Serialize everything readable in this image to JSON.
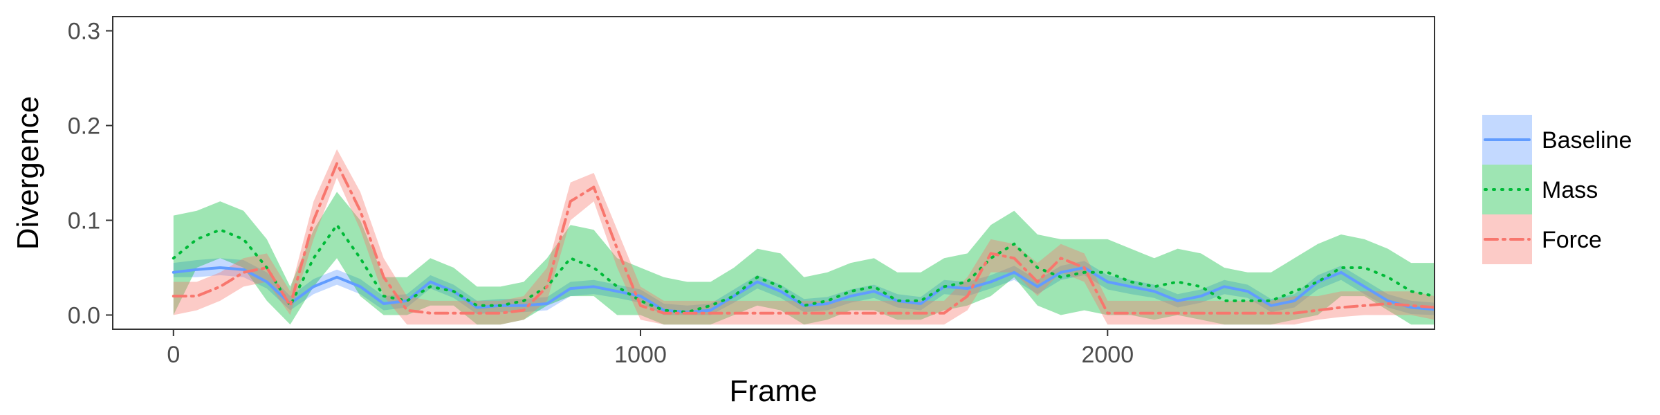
{
  "chart_data": {
    "type": "line",
    "title": "",
    "xlabel": "Frame",
    "ylabel": "Divergence",
    "xlim": [
      -130,
      2700
    ],
    "ylim": [
      -0.015,
      0.315
    ],
    "x_ticks": [
      0,
      1000,
      2000
    ],
    "x_tick_labels": [
      "0",
      "1000",
      "2000"
    ],
    "y_ticks": [
      0.0,
      0.1,
      0.2,
      0.3
    ],
    "y_tick_labels": [
      "0.0",
      "0.1",
      "0.2",
      "0.3"
    ],
    "grid": false,
    "legend_position": "right",
    "series": [
      {
        "name": "Baseline",
        "color": "#619CFF",
        "line_style": "solid",
        "ribbon": true,
        "points": [
          [
            0,
            0.045,
            0.04,
            0.055
          ],
          [
            50,
            0.048,
            0.04,
            0.058
          ],
          [
            100,
            0.05,
            0.042,
            0.06
          ],
          [
            150,
            0.048,
            0.04,
            0.058
          ],
          [
            200,
            0.035,
            0.028,
            0.045
          ],
          [
            250,
            0.012,
            0.005,
            0.02
          ],
          [
            300,
            0.03,
            0.022,
            0.038
          ],
          [
            350,
            0.04,
            0.032,
            0.048
          ],
          [
            400,
            0.03,
            0.022,
            0.038
          ],
          [
            450,
            0.012,
            0.005,
            0.02
          ],
          [
            500,
            0.015,
            0.008,
            0.022
          ],
          [
            550,
            0.035,
            0.028,
            0.042
          ],
          [
            600,
            0.025,
            0.018,
            0.032
          ],
          [
            650,
            0.008,
            0.001,
            0.015
          ],
          [
            700,
            0.01,
            0.003,
            0.017
          ],
          [
            750,
            0.01,
            0.003,
            0.017
          ],
          [
            800,
            0.012,
            0.005,
            0.019
          ],
          [
            850,
            0.028,
            0.02,
            0.035
          ],
          [
            900,
            0.03,
            0.022,
            0.037
          ],
          [
            950,
            0.025,
            0.018,
            0.032
          ],
          [
            1000,
            0.02,
            0.013,
            0.027
          ],
          [
            1050,
            0.005,
            0.0,
            0.012
          ],
          [
            1100,
            0.003,
            0.0,
            0.01
          ],
          [
            1150,
            0.005,
            0.0,
            0.012
          ],
          [
            1200,
            0.02,
            0.013,
            0.027
          ],
          [
            1250,
            0.035,
            0.028,
            0.042
          ],
          [
            1300,
            0.025,
            0.018,
            0.032
          ],
          [
            1350,
            0.01,
            0.003,
            0.017
          ],
          [
            1400,
            0.012,
            0.005,
            0.019
          ],
          [
            1450,
            0.02,
            0.013,
            0.027
          ],
          [
            1500,
            0.025,
            0.018,
            0.032
          ],
          [
            1550,
            0.015,
            0.008,
            0.022
          ],
          [
            1600,
            0.012,
            0.005,
            0.019
          ],
          [
            1650,
            0.03,
            0.022,
            0.037
          ],
          [
            1700,
            0.028,
            0.02,
            0.035
          ],
          [
            1750,
            0.035,
            0.028,
            0.042
          ],
          [
            1800,
            0.045,
            0.037,
            0.052
          ],
          [
            1850,
            0.03,
            0.022,
            0.037
          ],
          [
            1900,
            0.045,
            0.037,
            0.052
          ],
          [
            1950,
            0.05,
            0.042,
            0.057
          ],
          [
            2000,
            0.035,
            0.027,
            0.042
          ],
          [
            2050,
            0.03,
            0.022,
            0.037
          ],
          [
            2100,
            0.025,
            0.018,
            0.032
          ],
          [
            2150,
            0.015,
            0.008,
            0.022
          ],
          [
            2200,
            0.02,
            0.013,
            0.027
          ],
          [
            2250,
            0.03,
            0.022,
            0.037
          ],
          [
            2300,
            0.025,
            0.018,
            0.032
          ],
          [
            2350,
            0.01,
            0.003,
            0.017
          ],
          [
            2400,
            0.015,
            0.008,
            0.022
          ],
          [
            2450,
            0.035,
            0.027,
            0.042
          ],
          [
            2500,
            0.045,
            0.037,
            0.052
          ],
          [
            2550,
            0.03,
            0.022,
            0.037
          ],
          [
            2600,
            0.015,
            0.008,
            0.022
          ],
          [
            2650,
            0.008,
            0.001,
            0.015
          ],
          [
            2700,
            0.006,
            0.0,
            0.013
          ]
        ]
      },
      {
        "name": "Mass",
        "color": "#00BA38",
        "line_style": "dotted",
        "ribbon": true,
        "points": [
          [
            0,
            0.06,
            0.0,
            0.105
          ],
          [
            50,
            0.08,
            0.05,
            0.11
          ],
          [
            100,
            0.09,
            0.06,
            0.12
          ],
          [
            150,
            0.08,
            0.05,
            0.11
          ],
          [
            200,
            0.05,
            0.015,
            0.08
          ],
          [
            250,
            0.01,
            -0.01,
            0.03
          ],
          [
            300,
            0.06,
            0.03,
            0.09
          ],
          [
            350,
            0.095,
            0.06,
            0.13
          ],
          [
            400,
            0.06,
            0.02,
            0.1
          ],
          [
            450,
            0.02,
            0.0,
            0.04
          ],
          [
            500,
            0.015,
            0.0,
            0.04
          ],
          [
            550,
            0.03,
            0.01,
            0.06
          ],
          [
            600,
            0.025,
            0.01,
            0.05
          ],
          [
            650,
            0.01,
            -0.01,
            0.03
          ],
          [
            700,
            0.01,
            -0.01,
            0.03
          ],
          [
            750,
            0.015,
            -0.005,
            0.035
          ],
          [
            800,
            0.03,
            0.01,
            0.06
          ],
          [
            850,
            0.06,
            0.02,
            0.095
          ],
          [
            900,
            0.05,
            0.02,
            0.09
          ],
          [
            950,
            0.03,
            0.0,
            0.06
          ],
          [
            1000,
            0.015,
            0.0,
            0.05
          ],
          [
            1050,
            0.005,
            -0.01,
            0.04
          ],
          [
            1100,
            0.003,
            -0.01,
            0.035
          ],
          [
            1150,
            0.01,
            -0.01,
            0.035
          ],
          [
            1200,
            0.02,
            0.0,
            0.05
          ],
          [
            1250,
            0.04,
            0.01,
            0.07
          ],
          [
            1300,
            0.03,
            0.005,
            0.065
          ],
          [
            1350,
            0.01,
            -0.01,
            0.04
          ],
          [
            1400,
            0.015,
            -0.005,
            0.045
          ],
          [
            1450,
            0.025,
            0.005,
            0.055
          ],
          [
            1500,
            0.03,
            0.005,
            0.06
          ],
          [
            1550,
            0.015,
            -0.005,
            0.045
          ],
          [
            1600,
            0.015,
            -0.005,
            0.045
          ],
          [
            1650,
            0.03,
            0.005,
            0.06
          ],
          [
            1700,
            0.035,
            0.01,
            0.065
          ],
          [
            1750,
            0.06,
            0.02,
            0.095
          ],
          [
            1800,
            0.075,
            0.04,
            0.11
          ],
          [
            1850,
            0.05,
            0.01,
            0.085
          ],
          [
            1900,
            0.04,
            0.0,
            0.08
          ],
          [
            1950,
            0.045,
            0.005,
            0.08
          ],
          [
            2000,
            0.045,
            0.0,
            0.08
          ],
          [
            2050,
            0.035,
            0.0,
            0.07
          ],
          [
            2100,
            0.03,
            -0.005,
            0.06
          ],
          [
            2150,
            0.035,
            0.0,
            0.07
          ],
          [
            2200,
            0.03,
            -0.005,
            0.065
          ],
          [
            2250,
            0.015,
            -0.01,
            0.05
          ],
          [
            2300,
            0.015,
            -0.01,
            0.045
          ],
          [
            2350,
            0.015,
            -0.01,
            0.045
          ],
          [
            2400,
            0.025,
            -0.005,
            0.06
          ],
          [
            2450,
            0.035,
            0.0,
            0.075
          ],
          [
            2500,
            0.05,
            0.02,
            0.085
          ],
          [
            2550,
            0.05,
            0.02,
            0.08
          ],
          [
            2600,
            0.04,
            0.005,
            0.07
          ],
          [
            2650,
            0.025,
            -0.01,
            0.055
          ],
          [
            2700,
            0.02,
            -0.01,
            0.055
          ]
        ]
      },
      {
        "name": "Force",
        "color": "#F8766D",
        "line_style": "dashdot",
        "ribbon": true,
        "points": [
          [
            0,
            0.02,
            0.0,
            0.035
          ],
          [
            50,
            0.02,
            0.005,
            0.035
          ],
          [
            100,
            0.03,
            0.015,
            0.045
          ],
          [
            150,
            0.045,
            0.03,
            0.06
          ],
          [
            200,
            0.05,
            0.035,
            0.065
          ],
          [
            250,
            0.01,
            0.0,
            0.025
          ],
          [
            300,
            0.1,
            0.08,
            0.12
          ],
          [
            350,
            0.16,
            0.145,
            0.175
          ],
          [
            400,
            0.11,
            0.09,
            0.13
          ],
          [
            450,
            0.04,
            0.02,
            0.06
          ],
          [
            500,
            0.005,
            -0.01,
            0.02
          ],
          [
            550,
            0.002,
            -0.01,
            0.015
          ],
          [
            600,
            0.002,
            -0.01,
            0.015
          ],
          [
            650,
            0.002,
            -0.01,
            0.015
          ],
          [
            700,
            0.002,
            -0.01,
            0.015
          ],
          [
            750,
            0.005,
            -0.005,
            0.02
          ],
          [
            800,
            0.03,
            0.015,
            0.05
          ],
          [
            850,
            0.12,
            0.1,
            0.14
          ],
          [
            900,
            0.135,
            0.12,
            0.15
          ],
          [
            950,
            0.07,
            0.05,
            0.09
          ],
          [
            1000,
            0.01,
            -0.005,
            0.03
          ],
          [
            1050,
            0.002,
            -0.01,
            0.015
          ],
          [
            1100,
            0.002,
            -0.01,
            0.015
          ],
          [
            1150,
            0.002,
            -0.01,
            0.015
          ],
          [
            1200,
            0.002,
            -0.01,
            0.015
          ],
          [
            1250,
            0.002,
            -0.01,
            0.015
          ],
          [
            1300,
            0.002,
            -0.01,
            0.015
          ],
          [
            1350,
            0.002,
            -0.01,
            0.015
          ],
          [
            1400,
            0.002,
            -0.01,
            0.015
          ],
          [
            1450,
            0.002,
            -0.01,
            0.015
          ],
          [
            1500,
            0.002,
            -0.01,
            0.015
          ],
          [
            1550,
            0.002,
            -0.01,
            0.015
          ],
          [
            1600,
            0.002,
            -0.01,
            0.015
          ],
          [
            1650,
            0.002,
            -0.01,
            0.015
          ],
          [
            1700,
            0.02,
            0.005,
            0.04
          ],
          [
            1750,
            0.065,
            0.045,
            0.08
          ],
          [
            1800,
            0.06,
            0.045,
            0.075
          ],
          [
            1850,
            0.035,
            0.02,
            0.055
          ],
          [
            1900,
            0.06,
            0.045,
            0.075
          ],
          [
            1950,
            0.05,
            0.035,
            0.065
          ],
          [
            2000,
            0.002,
            -0.01,
            0.015
          ],
          [
            2050,
            0.002,
            -0.01,
            0.015
          ],
          [
            2100,
            0.002,
            -0.01,
            0.015
          ],
          [
            2150,
            0.002,
            -0.01,
            0.015
          ],
          [
            2200,
            0.002,
            -0.01,
            0.015
          ],
          [
            2250,
            0.002,
            -0.01,
            0.015
          ],
          [
            2300,
            0.002,
            -0.01,
            0.015
          ],
          [
            2350,
            0.002,
            -0.01,
            0.015
          ],
          [
            2400,
            0.002,
            -0.01,
            0.02
          ],
          [
            2450,
            0.005,
            -0.005,
            0.02
          ],
          [
            2500,
            0.008,
            -0.002,
            0.025
          ],
          [
            2550,
            0.01,
            0.0,
            0.025
          ],
          [
            2600,
            0.012,
            0.0,
            0.025
          ],
          [
            2650,
            0.01,
            0.0,
            0.025
          ],
          [
            2700,
            0.008,
            -0.005,
            0.02
          ]
        ]
      }
    ]
  }
}
